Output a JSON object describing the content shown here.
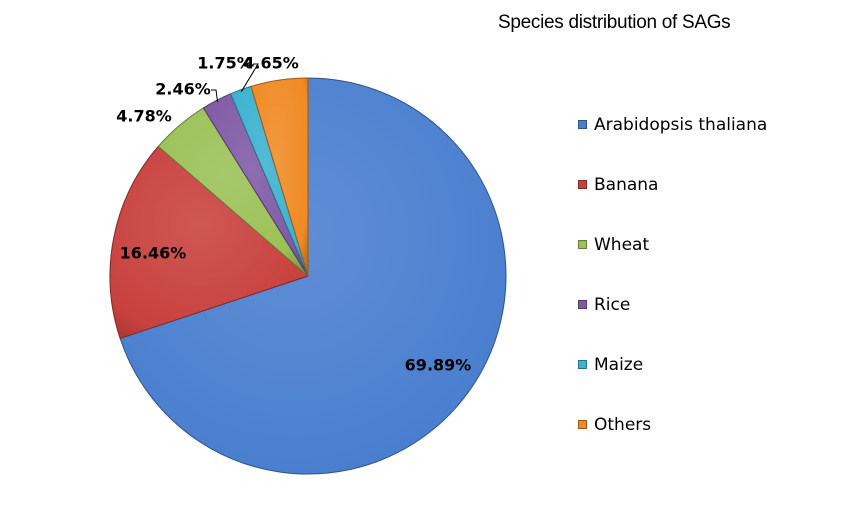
{
  "chart_data": {
    "type": "pie",
    "title": "Species distribution of SAGs",
    "categories": [
      "Arabidopsis thaliana",
      "Banana",
      "Wheat",
      "Rice",
      "Maize",
      "Others"
    ],
    "values": [
      69.89,
      16.46,
      4.78,
      2.46,
      1.75,
      4.65
    ],
    "labels": [
      "69.89%",
      "16.46%",
      "4.78%",
      "2.46%",
      "1.75%",
      "4.65%"
    ],
    "colors": [
      "#4a7fcf",
      "#c8413e",
      "#9bc157",
      "#7f5aa6",
      "#3bb2cf",
      "#f08a24"
    ],
    "legend": "right"
  }
}
